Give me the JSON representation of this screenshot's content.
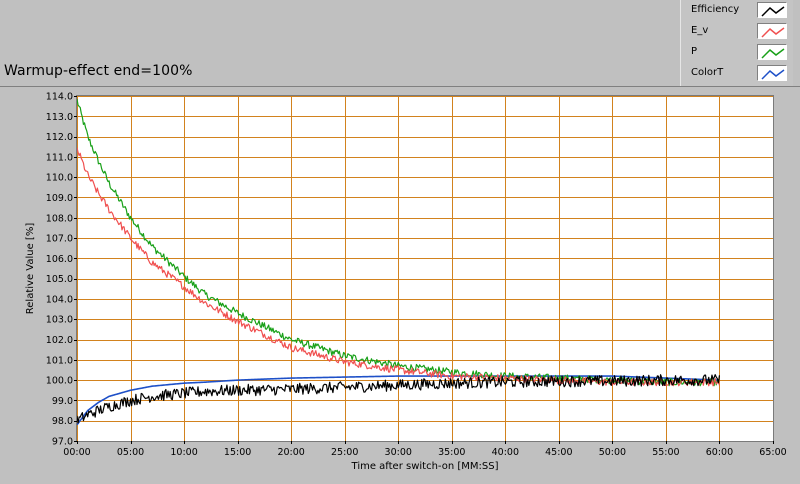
{
  "title": "Warmup-effect end=100%",
  "chart_data": {
    "type": "line",
    "xlabel": "Time after switch-on [MM:SS]",
    "ylabel": "Relative Value [%]",
    "xlim": [
      0,
      65
    ],
    "ylim": [
      97,
      114
    ],
    "x_ticks": [
      0,
      5,
      10,
      15,
      20,
      25,
      30,
      35,
      40,
      45,
      50,
      55,
      60,
      65
    ],
    "x_tick_labels": [
      "00:00",
      "05:00",
      "10:00",
      "15:00",
      "20:00",
      "25:00",
      "30:00",
      "35:00",
      "40:00",
      "45:00",
      "50:00",
      "55:00",
      "60:00",
      "65:00"
    ],
    "y_ticks": [
      97,
      98,
      99,
      100,
      101,
      102,
      103,
      104,
      105,
      106,
      107,
      108,
      109,
      110,
      111,
      112,
      113,
      114
    ],
    "y_tick_labels": [
      "97.0",
      "98.0",
      "99.0",
      "100.0",
      "101.0",
      "102.0",
      "103.0",
      "104.0",
      "105.0",
      "106.0",
      "107.0",
      "108.0",
      "109.0",
      "110.0",
      "111.0",
      "112.0",
      "113.0",
      "114.0"
    ],
    "grid": true,
    "legend_position": "top-right",
    "colors": {
      "plot_bg": "#ffffff",
      "grid": "#d2821e"
    },
    "series": [
      {
        "name": "Efficiency",
        "color": "#000000",
        "x": [
          0,
          1,
          2,
          3,
          5,
          7,
          10,
          12,
          15,
          20,
          25,
          30,
          35,
          40,
          45,
          50,
          55,
          60
        ],
        "values": [
          98.0,
          98.3,
          98.5,
          98.7,
          99.0,
          99.2,
          99.35,
          99.45,
          99.5,
          99.55,
          99.65,
          99.75,
          99.85,
          99.9,
          99.95,
          99.95,
          100.0,
          100.0
        ]
      },
      {
        "name": "E_v",
        "color": "#f05050",
        "x": [
          0,
          1,
          2,
          3,
          5,
          7,
          10,
          12,
          15,
          20,
          25,
          30,
          35,
          40,
          45,
          50,
          55,
          60
        ],
        "values": [
          111.4,
          110.1,
          109.2,
          108.4,
          107.0,
          105.8,
          104.6,
          103.8,
          102.9,
          101.6,
          100.9,
          100.5,
          100.2,
          100.1,
          100.0,
          99.9,
          99.9,
          99.9
        ]
      },
      {
        "name": "P",
        "color": "#18a018",
        "x": [
          0,
          1,
          2,
          3,
          5,
          7,
          10,
          12,
          15,
          20,
          25,
          30,
          35,
          40,
          45,
          50,
          55,
          60
        ],
        "values": [
          113.8,
          112.0,
          110.8,
          109.7,
          108.0,
          106.6,
          105.1,
          104.2,
          103.3,
          102.0,
          101.2,
          100.7,
          100.4,
          100.2,
          100.1,
          100.0,
          99.9,
          99.9
        ]
      },
      {
        "name": "ColorT",
        "color": "#1e50c8",
        "x": [
          0,
          1,
          2,
          3,
          5,
          7,
          10,
          12,
          15,
          20,
          25,
          30,
          35,
          40,
          45,
          50,
          55,
          60
        ],
        "values": [
          97.8,
          98.5,
          98.9,
          99.2,
          99.5,
          99.7,
          99.85,
          99.9,
          100.0,
          100.1,
          100.15,
          100.2,
          100.2,
          100.2,
          100.2,
          100.2,
          100.1,
          100.0
        ]
      }
    ]
  }
}
